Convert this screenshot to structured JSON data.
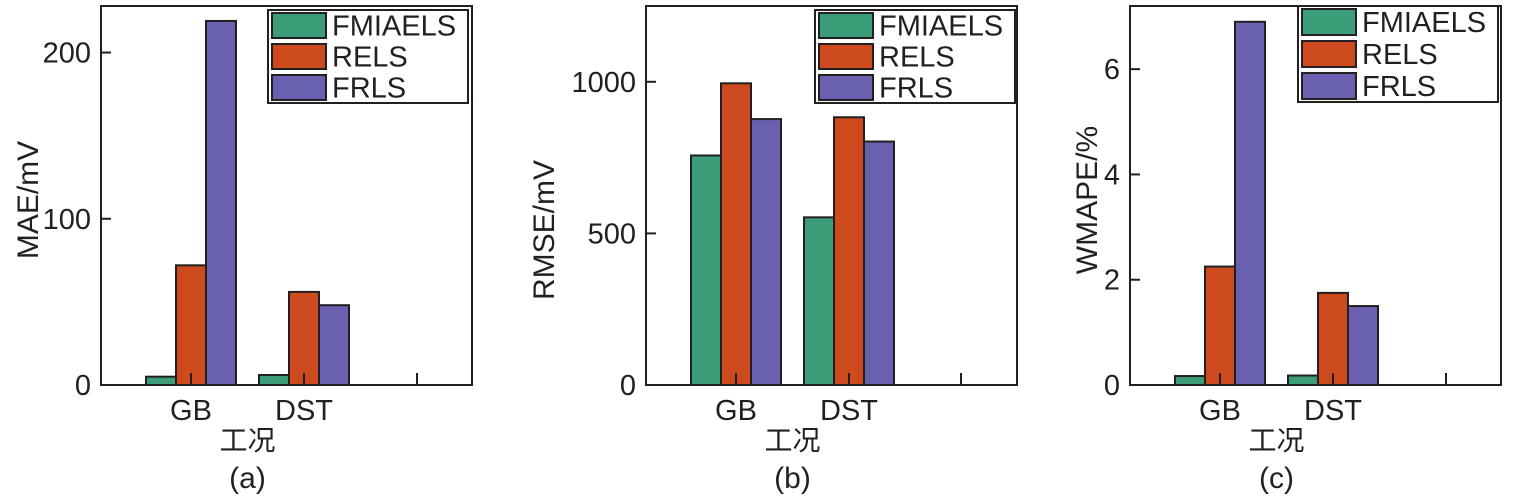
{
  "colors": {
    "FMIAELS": "#3c9e78",
    "RELS": "#cd4a1e",
    "FRLS": "#6a60b0"
  },
  "chart_data": [
    {
      "type": "bar",
      "caption": "(a)",
      "xlabel": "工况",
      "ylabel": "MAE/mV",
      "categories": [
        "GB",
        "DST"
      ],
      "series": [
        {
          "name": "FMIAELS",
          "values": [
            5,
            6
          ]
        },
        {
          "name": "RELS",
          "values": [
            72,
            56
          ]
        },
        {
          "name": "FRLS",
          "values": [
            219,
            48
          ]
        }
      ],
      "ylim": [
        0,
        228
      ],
      "yticks": [
        0,
        100,
        200
      ],
      "ytick_labels": [
        "0",
        "100",
        "200"
      ]
    },
    {
      "type": "bar",
      "caption": "(b)",
      "xlabel": "工况",
      "ylabel": "RMSE/mV",
      "categories": [
        "GB",
        "DST"
      ],
      "series": [
        {
          "name": "FMIAELS",
          "values": [
            757,
            553
          ]
        },
        {
          "name": "RELS",
          "values": [
            995,
            883
          ]
        },
        {
          "name": "FRLS",
          "values": [
            877,
            803
          ]
        }
      ],
      "ylim": [
        0,
        1250
      ],
      "yticks": [
        0,
        500,
        1000
      ],
      "ytick_labels": [
        "0",
        "500",
        "1000"
      ]
    },
    {
      "type": "bar",
      "caption": "(c)",
      "xlabel": "工况",
      "ylabel": "WMAPE/%",
      "categories": [
        "GB",
        "DST"
      ],
      "series": [
        {
          "name": "FMIAELS",
          "values": [
            0.17,
            0.18
          ]
        },
        {
          "name": "RELS",
          "values": [
            2.25,
            1.75
          ]
        },
        {
          "name": "FRLS",
          "values": [
            6.9,
            1.5
          ]
        }
      ],
      "ylim": [
        0,
        7.2
      ],
      "yticks": [
        0,
        2,
        4,
        6
      ],
      "ytick_labels": [
        "0",
        "2",
        "4",
        "6"
      ]
    }
  ]
}
